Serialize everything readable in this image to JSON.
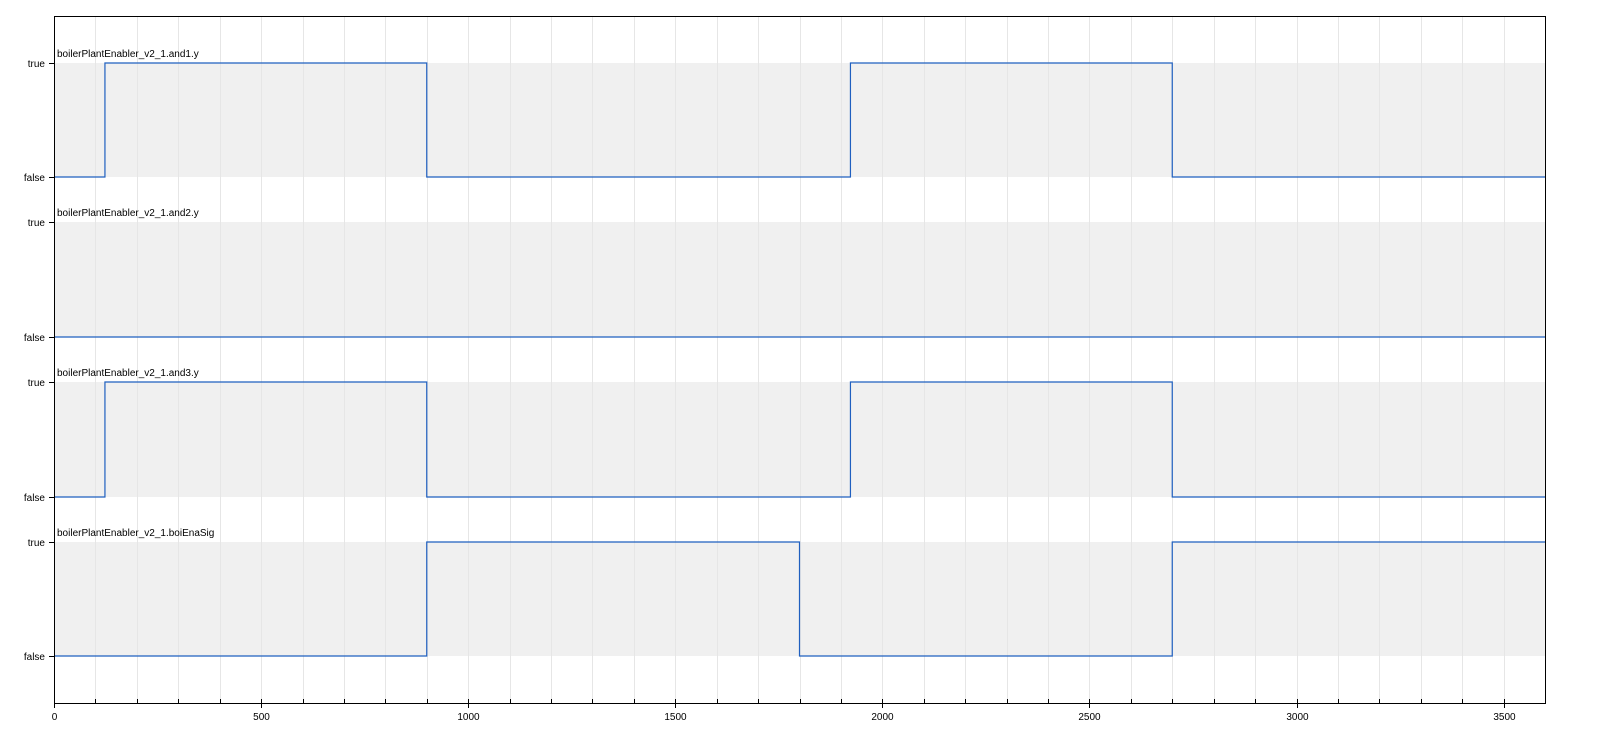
{
  "chart_data": {
    "type": "line",
    "xlim": [
      0,
      3600
    ],
    "x_ticks": [
      0,
      500,
      1000,
      1500,
      2000,
      2500,
      3000,
      3500
    ],
    "x_minor_step": 100,
    "y_levels": [
      "false",
      "true"
    ],
    "grid": true,
    "colors": {
      "line": "#1f5fbf",
      "band": "#f0f0f0",
      "grid": "#e6e6e6",
      "axis": "#000000"
    },
    "series": [
      {
        "name": "boilerPlantEnabler_v2_1.and1.y",
        "steps": [
          [
            0,
            0
          ],
          [
            123,
            1
          ],
          [
            900,
            0
          ],
          [
            1923,
            1
          ],
          [
            2700,
            0
          ],
          [
            3600,
            0
          ]
        ]
      },
      {
        "name": "boilerPlantEnabler_v2_1.and2.y",
        "steps": [
          [
            0,
            0
          ],
          [
            3600,
            0
          ]
        ]
      },
      {
        "name": "boilerPlantEnabler_v2_1.and3.y",
        "steps": [
          [
            0,
            0
          ],
          [
            123,
            1
          ],
          [
            900,
            0
          ],
          [
            1923,
            1
          ],
          [
            2700,
            0
          ],
          [
            3600,
            0
          ]
        ]
      },
      {
        "name": "boilerPlantEnabler_v2_1.boiEnaSig",
        "steps": [
          [
            0,
            0
          ],
          [
            900,
            1
          ],
          [
            1800,
            0
          ],
          [
            2700,
            1
          ],
          [
            3600,
            1
          ]
        ]
      }
    ]
  }
}
